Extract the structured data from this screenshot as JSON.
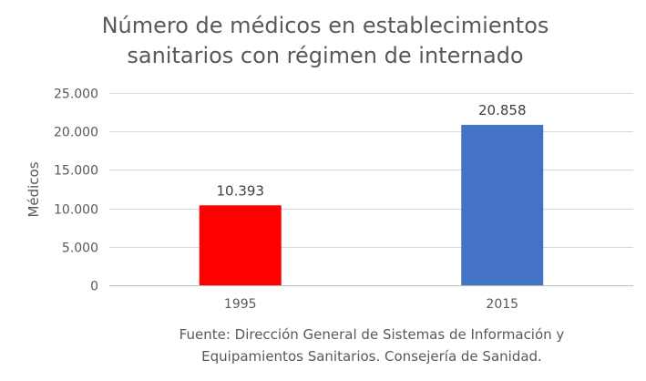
{
  "chart_data": {
    "type": "bar",
    "title_lines": [
      "Número de médicos en establecimientos",
      "sanitarios con régimen de internado"
    ],
    "xlabel": "",
    "ylabel": "Médicos",
    "categories": [
      "1995",
      "2015"
    ],
    "values": [
      10393,
      20858
    ],
    "data_labels": [
      "10.393",
      "20.858"
    ],
    "ylim": [
      0,
      25000
    ],
    "yticks": [
      0,
      5000,
      10000,
      15000,
      20000,
      25000
    ],
    "ytick_labels": [
      "0",
      "5.000",
      "10.000",
      "15.000",
      "20.000",
      "25.000"
    ],
    "bar_colors": [
      "#ff0000",
      "#4472c4"
    ],
    "gridlines": true,
    "legend": "none",
    "source_lines": [
      "Fuente: Dirección General de Sistemas de Información y",
      "Equipamientos Sanitarios. Consejería de Sanidad."
    ]
  },
  "colors": {
    "grid": "#d9d9d9",
    "axis_line": "#bfbfbf",
    "text": "#595959"
  }
}
